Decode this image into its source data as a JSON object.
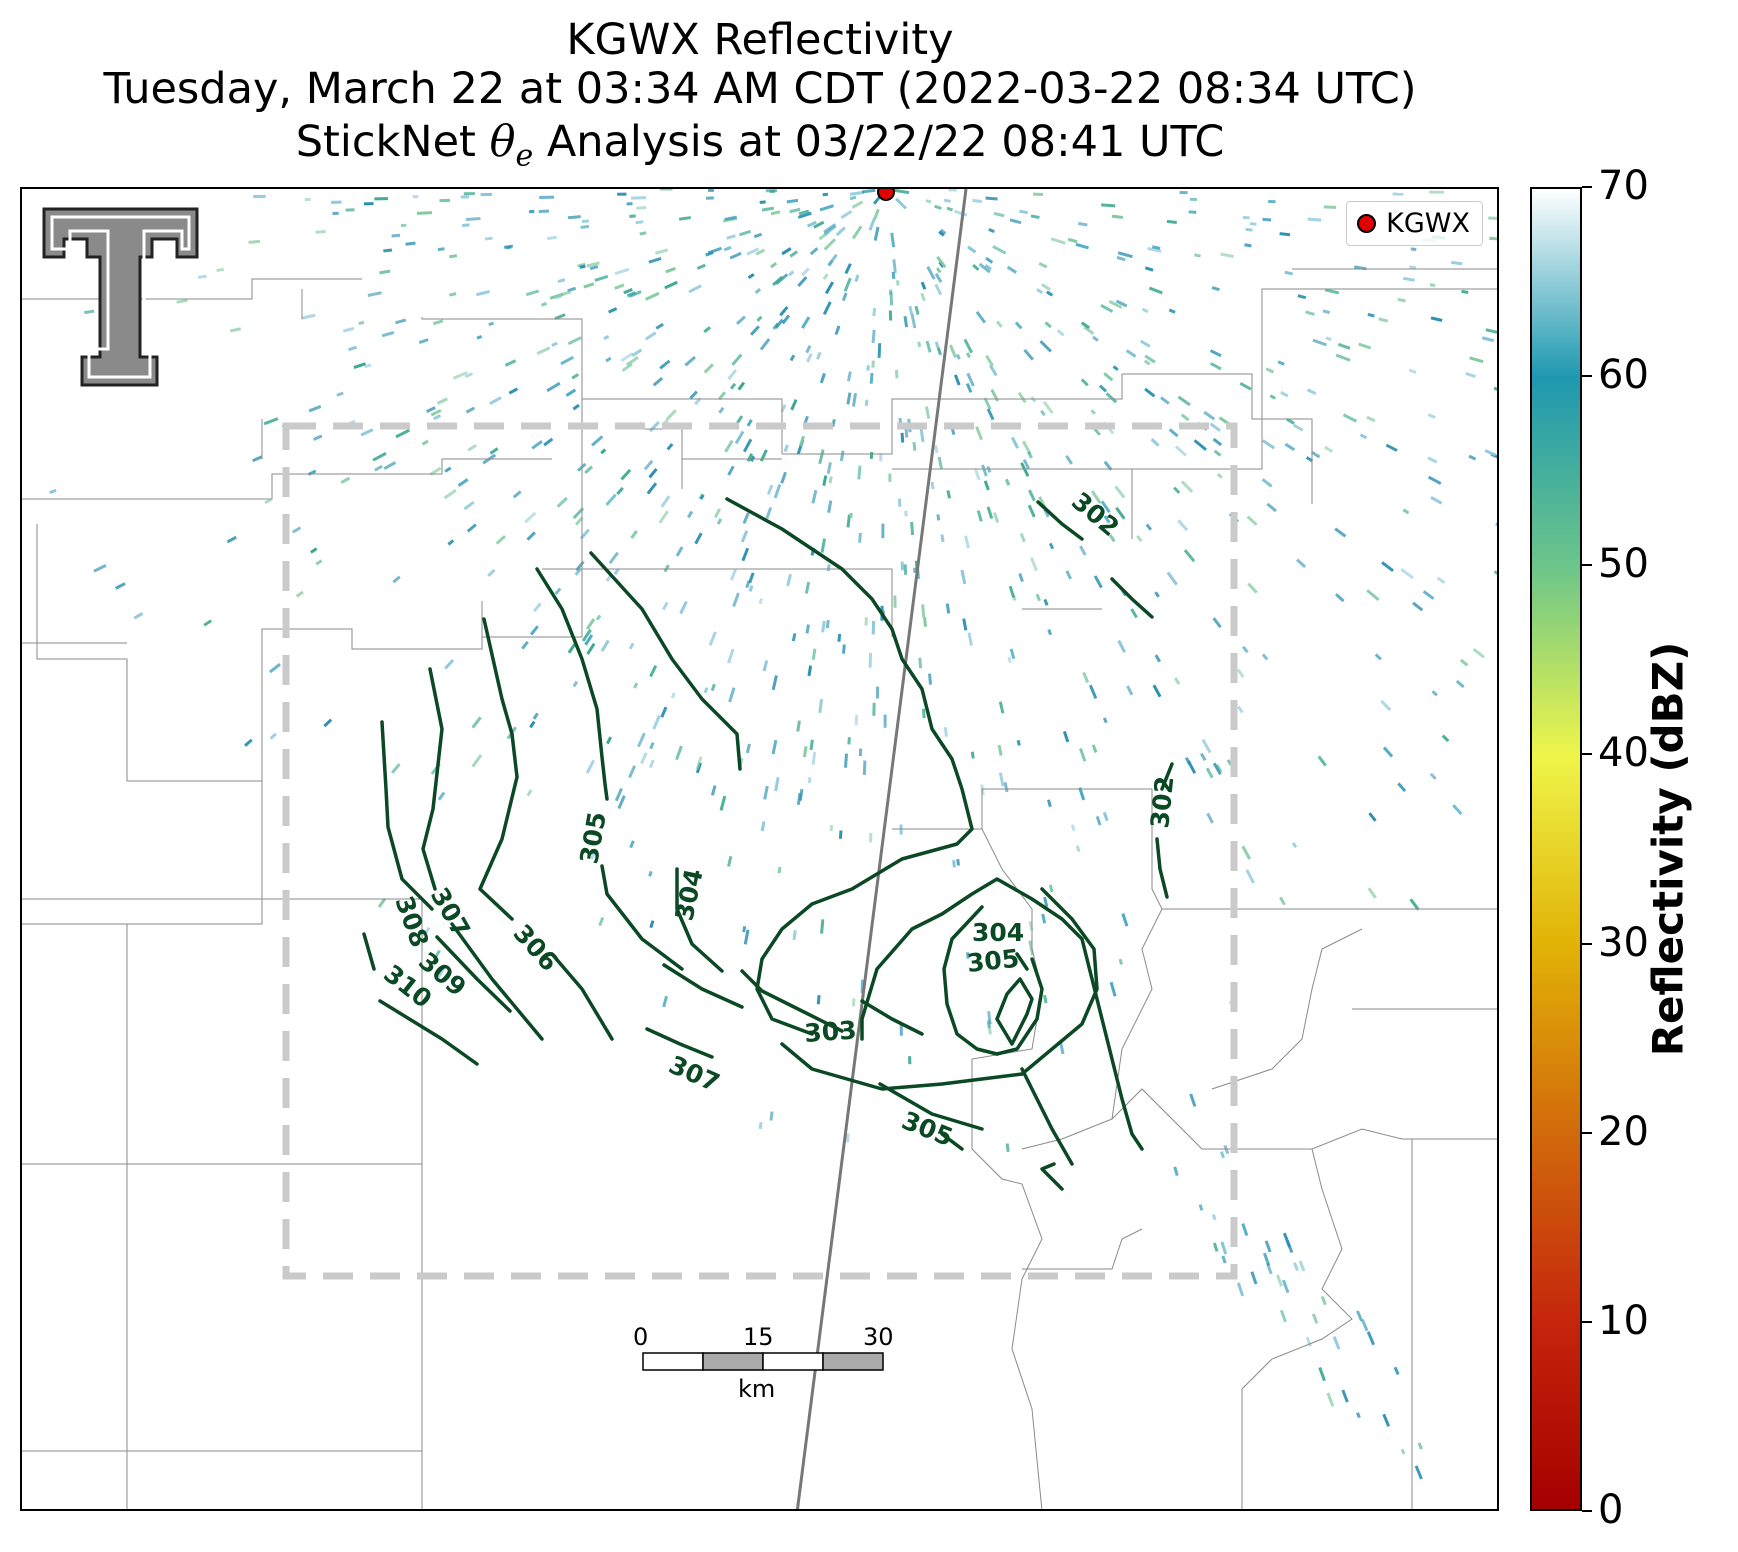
{
  "title": {
    "line1": "KGWX Reflectivity",
    "line2": "Tuesday, March 22 at 03:34 AM CDT (2022-03-22 08:34 UTC)",
    "line3_prefix": "StickNet ",
    "line3_symbol": "θ",
    "line3_subscript": "e",
    "line3_suffix": " Analysis at 03/22/22 08:41 UTC"
  },
  "legend": {
    "label": "KGWX",
    "marker_color": "#e00000"
  },
  "scale_bar": {
    "labels": [
      "0",
      "15",
      "30"
    ],
    "unit": "km"
  },
  "colorbar": {
    "label": "Reflectivity (dBZ)",
    "ticks": [
      "0",
      "10",
      "20",
      "30",
      "40",
      "50",
      "60",
      "70"
    ],
    "min": 0,
    "max": 70,
    "colors": [
      "#ffffff",
      "#1e98b0",
      "#6cc58a",
      "#eef54a",
      "#e2b307",
      "#d26a0c",
      "#c5260c",
      "#a50000"
    ]
  },
  "contours": {
    "color": "#0b4824",
    "labels": [
      "310",
      "309",
      "308",
      "307",
      "306",
      "305",
      "304",
      "303",
      "302",
      "307",
      "305",
      "304",
      "305",
      "302"
    ]
  },
  "logo": {
    "name": "Texas Tech double-T logo",
    "text": "T"
  },
  "colors": {
    "radar": "#2a8fb0",
    "radar_light": "#8cc7dc",
    "dashed_box": "#c8c8c8",
    "borders": "#8a8a8a"
  }
}
